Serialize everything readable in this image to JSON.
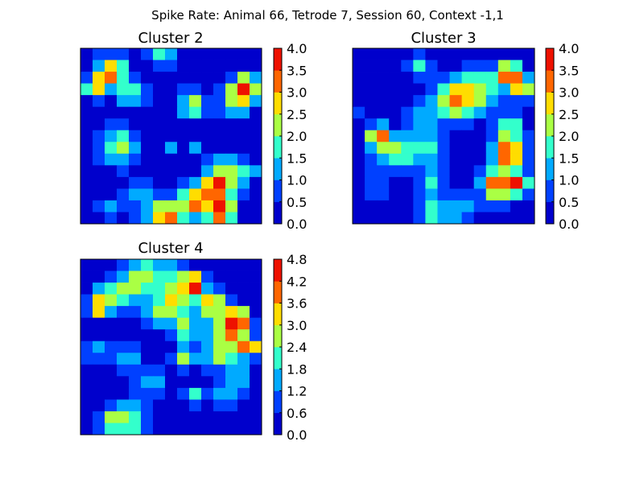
{
  "figure": {
    "title": "Spike Rate: Animal 66, Tetrode 7, Session 60, Context -1,1"
  },
  "colormap": [
    "#0000cc",
    "#0040ff",
    "#00aaff",
    "#33ffcc",
    "#aaff44",
    "#ffdd00",
    "#ff6600",
    "#ee1100",
    "#aa0000"
  ],
  "chart_data": [
    {
      "type": "heatmap",
      "title": "Cluster 2",
      "colorbar_ticks": [
        "0.0",
        "0.5",
        "1.0",
        "1.5",
        "2.0",
        "2.5",
        "3.0",
        "3.5",
        "4.0"
      ],
      "levels": [
        0,
        0.5,
        1.0,
        1.5,
        2.0,
        2.5,
        3.0,
        3.5,
        4.0
      ],
      "vmax": 4.0,
      "peaks": [
        {
          "x": 0.17,
          "y": 0.14,
          "amp": 3.0,
          "s": 0.06
        },
        {
          "x": 0.08,
          "y": 0.22,
          "amp": 2.6,
          "s": 0.04
        },
        {
          "x": 0.28,
          "y": 0.26,
          "amp": 1.6,
          "s": 0.05
        },
        {
          "x": 0.45,
          "y": 0.03,
          "amp": 1.8,
          "s": 0.05
        },
        {
          "x": 0.62,
          "y": 0.32,
          "amp": 2.2,
          "s": 0.05
        },
        {
          "x": 0.91,
          "y": 0.22,
          "amp": 3.4,
          "s": 0.05
        },
        {
          "x": 0.86,
          "y": 0.3,
          "amp": 1.8,
          "s": 0.06
        },
        {
          "x": 0.21,
          "y": 0.56,
          "amp": 2.0,
          "s": 0.07
        },
        {
          "x": 0.5,
          "y": 0.55,
          "amp": 1.0,
          "s": 0.03
        },
        {
          "x": 0.64,
          "y": 0.58,
          "amp": 0.9,
          "s": 0.03
        },
        {
          "x": 0.15,
          "y": 0.92,
          "amp": 1.0,
          "s": 0.04
        },
        {
          "x": 0.47,
          "y": 0.97,
          "amp": 3.0,
          "s": 0.07
        },
        {
          "x": 0.63,
          "y": 0.88,
          "amp": 2.8,
          "s": 0.06
        },
        {
          "x": 0.78,
          "y": 0.93,
          "amp": 3.8,
          "s": 0.05
        },
        {
          "x": 0.74,
          "y": 0.79,
          "amp": 3.2,
          "s": 0.05
        },
        {
          "x": 0.82,
          "y": 0.72,
          "amp": 2.2,
          "s": 0.07
        },
        {
          "x": 0.33,
          "y": 0.85,
          "amp": 1.0,
          "s": 0.06
        },
        {
          "x": 0.94,
          "y": 0.7,
          "amp": 0.8,
          "s": 0.03
        }
      ]
    },
    {
      "type": "heatmap",
      "title": "Cluster 3",
      "colorbar_ticks": [
        "0.0",
        "0.5",
        "1.0",
        "1.5",
        "2.0",
        "2.5",
        "3.0",
        "3.5",
        "4.0"
      ],
      "levels": [
        0,
        0.5,
        1.0,
        1.5,
        2.0,
        2.5,
        3.0,
        3.5,
        4.0
      ],
      "vmax": 4.0,
      "peaks": [
        {
          "x": 0.36,
          "y": 0.11,
          "amp": 1.8,
          "s": 0.04
        },
        {
          "x": 0.58,
          "y": 0.29,
          "amp": 2.8,
          "s": 0.08
        },
        {
          "x": 0.86,
          "y": 0.14,
          "amp": 3.4,
          "s": 0.04
        },
        {
          "x": 0.93,
          "y": 0.22,
          "amp": 3.3,
          "s": 0.04
        },
        {
          "x": 0.73,
          "y": 0.22,
          "amp": 1.5,
          "s": 0.08
        },
        {
          "x": 0.14,
          "y": 0.5,
          "amp": 3.4,
          "s": 0.04
        },
        {
          "x": 0.22,
          "y": 0.6,
          "amp": 1.8,
          "s": 0.07
        },
        {
          "x": 0.4,
          "y": 0.58,
          "amp": 1.4,
          "s": 0.08
        },
        {
          "x": 0.4,
          "y": 0.4,
          "amp": 1.2,
          "s": 0.06
        },
        {
          "x": 0.86,
          "y": 0.6,
          "amp": 3.6,
          "s": 0.06
        },
        {
          "x": 0.8,
          "y": 0.78,
          "amp": 3.4,
          "s": 0.06
        },
        {
          "x": 0.92,
          "y": 0.78,
          "amp": 3.0,
          "s": 0.04
        },
        {
          "x": 0.86,
          "y": 0.45,
          "amp": 1.8,
          "s": 0.05
        },
        {
          "x": 0.44,
          "y": 0.93,
          "amp": 1.6,
          "s": 0.06
        },
        {
          "x": 0.6,
          "y": 0.92,
          "amp": 1.4,
          "s": 0.05
        },
        {
          "x": 0.04,
          "y": 0.35,
          "amp": 0.8,
          "s": 0.03
        },
        {
          "x": 0.13,
          "y": 0.78,
          "amp": 0.9,
          "s": 0.05
        },
        {
          "x": 0.44,
          "y": 0.78,
          "amp": 1.2,
          "s": 0.05
        }
      ]
    },
    {
      "type": "heatmap",
      "title": "Cluster 4",
      "colorbar_ticks": [
        "0.0",
        "0.6",
        "1.2",
        "1.8",
        "2.4",
        "3.0",
        "3.6",
        "4.2",
        "4.8"
      ],
      "levels": [
        0,
        0.6,
        1.2,
        1.8,
        2.4,
        3.0,
        3.6,
        4.2,
        4.8
      ],
      "vmax": 4.8,
      "peaks": [
        {
          "x": 0.1,
          "y": 0.27,
          "amp": 3.0,
          "s": 0.04
        },
        {
          "x": 0.16,
          "y": 0.22,
          "amp": 1.8,
          "s": 0.07
        },
        {
          "x": 0.28,
          "y": 0.18,
          "amp": 1.6,
          "s": 0.06
        },
        {
          "x": 0.34,
          "y": 0.08,
          "amp": 2.0,
          "s": 0.07
        },
        {
          "x": 0.5,
          "y": 0.1,
          "amp": 1.6,
          "s": 0.07
        },
        {
          "x": 0.62,
          "y": 0.14,
          "amp": 4.4,
          "s": 0.04
        },
        {
          "x": 0.53,
          "y": 0.24,
          "amp": 2.6,
          "s": 0.06
        },
        {
          "x": 0.72,
          "y": 0.25,
          "amp": 3.6,
          "s": 0.05
        },
        {
          "x": 0.86,
          "y": 0.35,
          "amp": 4.6,
          "s": 0.05
        },
        {
          "x": 0.93,
          "y": 0.5,
          "amp": 4.2,
          "s": 0.04
        },
        {
          "x": 0.8,
          "y": 0.42,
          "amp": 2.4,
          "s": 0.07
        },
        {
          "x": 0.58,
          "y": 0.4,
          "amp": 2.6,
          "s": 0.05
        },
        {
          "x": 0.44,
          "y": 0.3,
          "amp": 2.0,
          "s": 0.06
        },
        {
          "x": 0.78,
          "y": 0.55,
          "amp": 2.2,
          "s": 0.06
        },
        {
          "x": 0.58,
          "y": 0.56,
          "amp": 2.4,
          "s": 0.04
        },
        {
          "x": 0.62,
          "y": 0.78,
          "amp": 2.0,
          "s": 0.04
        },
        {
          "x": 0.26,
          "y": 0.55,
          "amp": 1.6,
          "s": 0.05
        },
        {
          "x": 0.1,
          "y": 0.52,
          "amp": 1.4,
          "s": 0.05
        },
        {
          "x": 0.27,
          "y": 0.92,
          "amp": 2.4,
          "s": 0.07
        },
        {
          "x": 0.16,
          "y": 0.92,
          "amp": 1.8,
          "s": 0.05
        },
        {
          "x": 0.8,
          "y": 0.78,
          "amp": 1.4,
          "s": 0.05
        },
        {
          "x": 0.88,
          "y": 0.68,
          "amp": 1.6,
          "s": 0.05
        },
        {
          "x": 0.4,
          "y": 0.7,
          "amp": 1.3,
          "s": 0.06
        }
      ]
    }
  ]
}
